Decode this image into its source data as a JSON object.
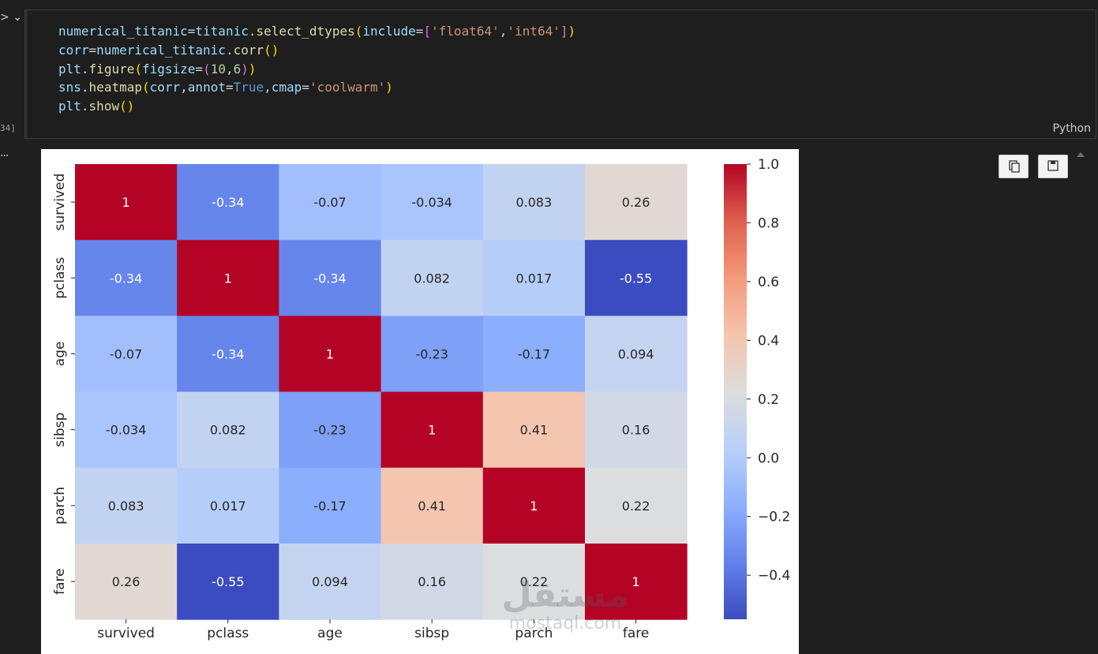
{
  "gutter": {
    "run_icon_glyph": ">",
    "chevron_glyph": "⌄",
    "execution_count": "34]",
    "output_dots": "..."
  },
  "cell": {
    "language": "Python",
    "code_lines": [
      "numerical_titanic=titanic.select_dtypes(include=['float64','int64'])",
      "corr=numerical_titanic.corr()",
      "plt.figure(figsize=(10,6))",
      "sns.heatmap(corr,annot=True,cmap='coolwarm')",
      "plt.show()"
    ]
  },
  "output_toolbar": {
    "copy_button": "copy-icon",
    "save_button": "save-icon"
  },
  "watermark": {
    "arabic": "مستقل",
    "latin": "mostaql.com"
  },
  "chart_data": {
    "type": "heatmap",
    "title": "",
    "colormap": "coolwarm",
    "rows": [
      "survived",
      "pclass",
      "age",
      "sibsp",
      "parch",
      "fare"
    ],
    "columns": [
      "survived",
      "pclass",
      "age",
      "sibsp",
      "parch",
      "fare"
    ],
    "values": [
      [
        1,
        -0.34,
        -0.07,
        -0.034,
        0.083,
        0.26
      ],
      [
        -0.34,
        1,
        -0.34,
        0.082,
        0.017,
        -0.55
      ],
      [
        -0.07,
        -0.34,
        1,
        -0.23,
        -0.17,
        0.094
      ],
      [
        -0.034,
        0.082,
        -0.23,
        1,
        0.41,
        0.16
      ],
      [
        0.083,
        0.017,
        -0.17,
        0.41,
        1,
        0.22
      ],
      [
        0.26,
        -0.55,
        0.094,
        0.16,
        0.22,
        1
      ]
    ],
    "annotations": [
      [
        "1",
        "-0.34",
        "-0.07",
        "-0.034",
        "0.083",
        "0.26"
      ],
      [
        "-0.34",
        "1",
        "-0.34",
        "0.082",
        "0.017",
        "-0.55"
      ],
      [
        "-0.07",
        "-0.34",
        "1",
        "-0.23",
        "-0.17",
        "0.094"
      ],
      [
        "-0.034",
        "0.082",
        "-0.23",
        "1",
        "0.41",
        "0.16"
      ],
      [
        "0.083",
        "0.017",
        "-0.17",
        "0.41",
        "1",
        "0.22"
      ],
      [
        "0.26",
        "-0.55",
        "0.094",
        "0.16",
        "0.22",
        "1"
      ]
    ],
    "colorbar": {
      "vmin": -0.55,
      "vmax": 1.0,
      "ticks": [
        1.0,
        0.8,
        0.6,
        0.4,
        0.2,
        0.0,
        -0.2,
        -0.4
      ],
      "tick_labels": [
        "1.0",
        "0.8",
        "0.6",
        "0.4",
        "0.2",
        "0.0",
        "−0.2",
        "−0.4"
      ]
    }
  }
}
